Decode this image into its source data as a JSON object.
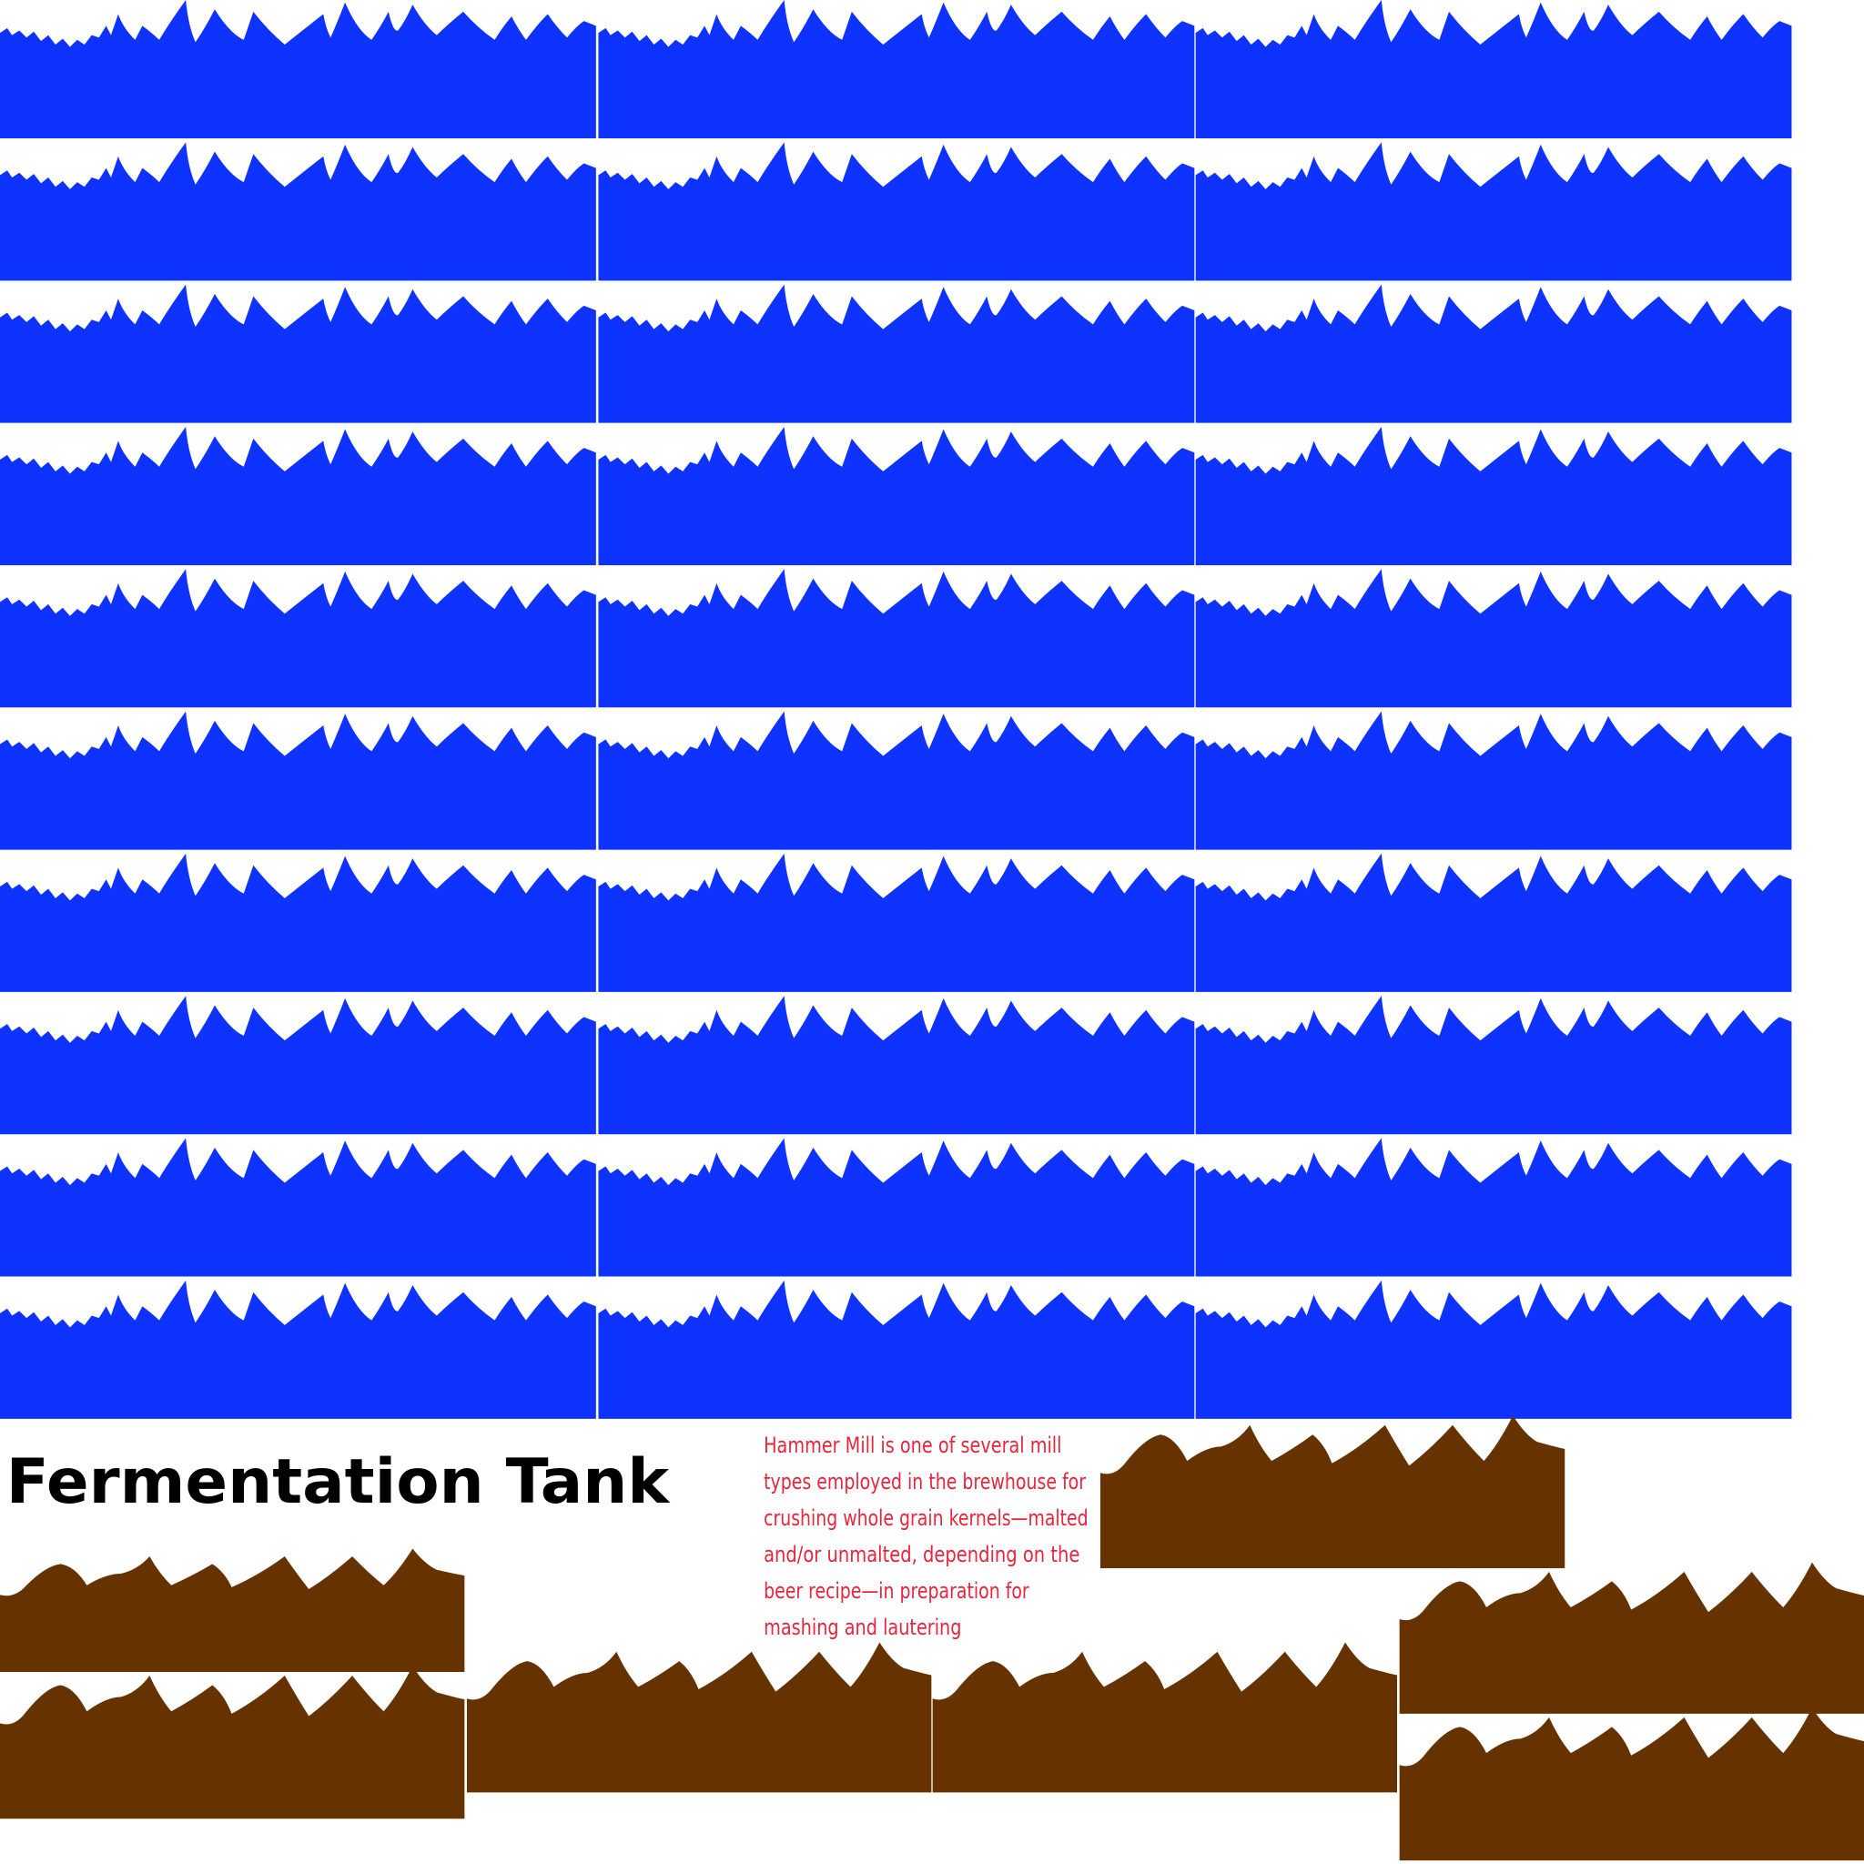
{
  "header": {
    "title": "Fermentation Tank"
  },
  "description": {
    "lines": [
      "Hammer Mill is one of several mill",
      "types employed in the brewhouse for",
      "crushing whole grain kernels—malted",
      "and/or unmalted, depending on the",
      "beer recipe—in preparation for",
      "mashing and lautering"
    ]
  }
}
